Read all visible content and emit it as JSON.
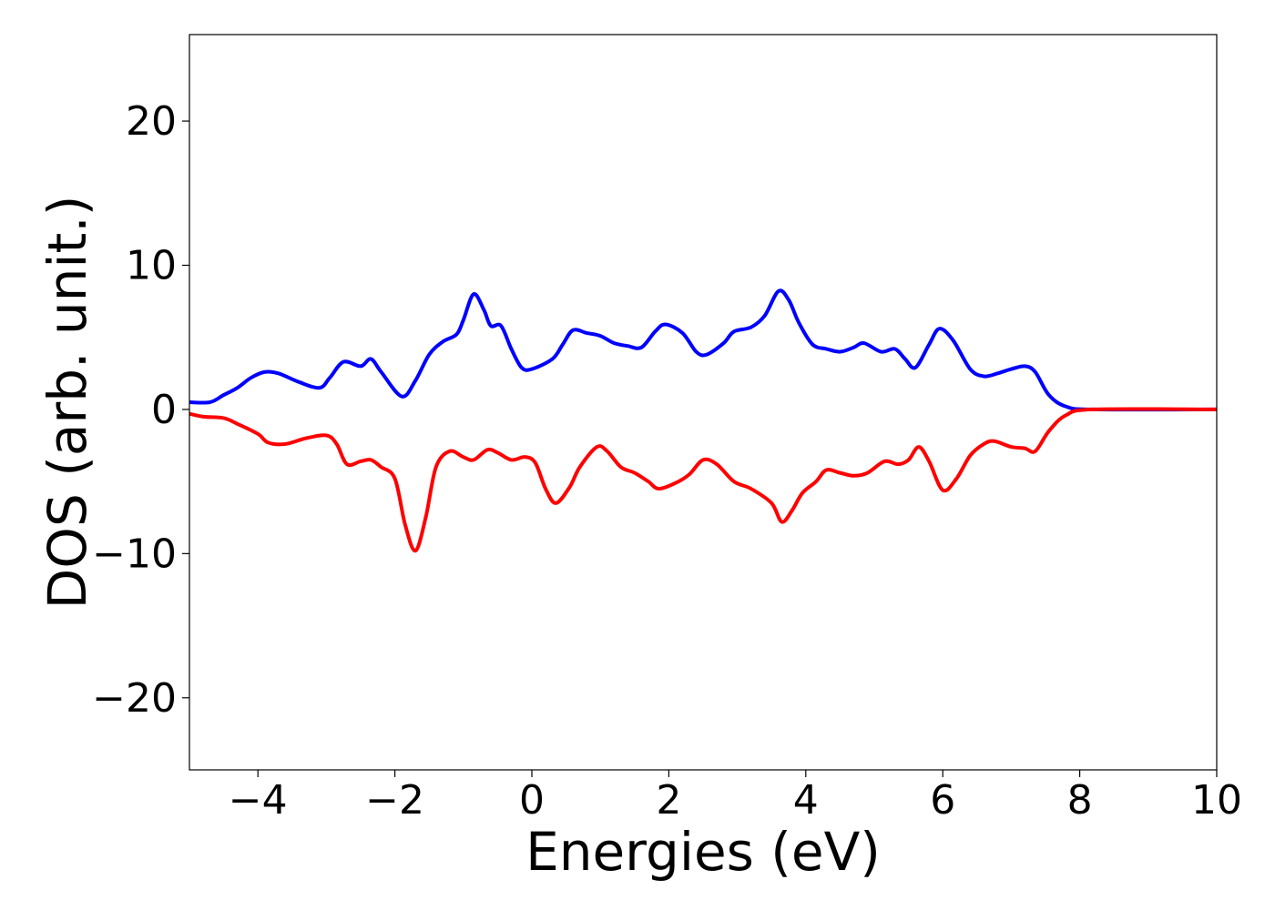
{
  "chart_data": {
    "type": "line",
    "title": "",
    "xlabel": "Energies (eV)",
    "ylabel": "DOS (arb. unit.)",
    "xlim": [
      -5,
      10
    ],
    "ylim": [
      -25,
      26
    ],
    "xticks": [
      -4,
      -2,
      0,
      2,
      4,
      6,
      8,
      10
    ],
    "xtick_labels": [
      "−4",
      "−2",
      "0",
      "2",
      "4",
      "6",
      "8",
      "10"
    ],
    "yticks": [
      20,
      10,
      0,
      -10,
      -20
    ],
    "ytick_labels": [
      "20",
      "10",
      "0",
      "−10",
      "−20"
    ],
    "grid": false,
    "legend": "none",
    "series": [
      {
        "color": "#0000ff",
        "points": [
          [
            -5.0,
            0.5
          ],
          [
            -4.7,
            0.5
          ],
          [
            -4.5,
            1.0
          ],
          [
            -4.3,
            1.5
          ],
          [
            -4.1,
            2.2
          ],
          [
            -3.9,
            2.6
          ],
          [
            -3.7,
            2.5
          ],
          [
            -3.4,
            1.9
          ],
          [
            -3.1,
            1.5
          ],
          [
            -2.95,
            2.2
          ],
          [
            -2.75,
            3.3
          ],
          [
            -2.5,
            3.0
          ],
          [
            -2.35,
            3.5
          ],
          [
            -2.2,
            2.6
          ],
          [
            -1.9,
            0.9
          ],
          [
            -1.7,
            2.0
          ],
          [
            -1.5,
            3.8
          ],
          [
            -1.3,
            4.7
          ],
          [
            -1.1,
            5.2
          ],
          [
            -1.0,
            6.2
          ],
          [
            -0.85,
            8.0
          ],
          [
            -0.7,
            6.9
          ],
          [
            -0.6,
            5.8
          ],
          [
            -0.45,
            5.8
          ],
          [
            -0.3,
            4.2
          ],
          [
            -0.15,
            2.9
          ],
          [
            0.0,
            2.8
          ],
          [
            0.3,
            3.5
          ],
          [
            0.45,
            4.5
          ],
          [
            0.6,
            5.5
          ],
          [
            0.8,
            5.3
          ],
          [
            1.0,
            5.1
          ],
          [
            1.2,
            4.6
          ],
          [
            1.4,
            4.4
          ],
          [
            1.6,
            4.3
          ],
          [
            1.8,
            5.4
          ],
          [
            1.95,
            5.9
          ],
          [
            2.2,
            5.3
          ],
          [
            2.4,
            4.0
          ],
          [
            2.55,
            3.8
          ],
          [
            2.8,
            4.6
          ],
          [
            2.95,
            5.4
          ],
          [
            3.2,
            5.7
          ],
          [
            3.4,
            6.5
          ],
          [
            3.6,
            8.2
          ],
          [
            3.75,
            7.6
          ],
          [
            3.9,
            6.0
          ],
          [
            4.1,
            4.5
          ],
          [
            4.3,
            4.2
          ],
          [
            4.5,
            4.0
          ],
          [
            4.7,
            4.3
          ],
          [
            4.85,
            4.6
          ],
          [
            5.1,
            4.0
          ],
          [
            5.3,
            4.2
          ],
          [
            5.45,
            3.5
          ],
          [
            5.6,
            2.9
          ],
          [
            5.8,
            4.5
          ],
          [
            5.95,
            5.6
          ],
          [
            6.15,
            4.8
          ],
          [
            6.4,
            2.8
          ],
          [
            6.6,
            2.3
          ],
          [
            6.8,
            2.5
          ],
          [
            7.0,
            2.8
          ],
          [
            7.2,
            3.0
          ],
          [
            7.35,
            2.6
          ],
          [
            7.55,
            1.0
          ],
          [
            7.8,
            0.2
          ],
          [
            8.2,
            0.0
          ],
          [
            10.0,
            0.0
          ]
        ]
      },
      {
        "color": "#ff0000",
        "points": [
          [
            -5.0,
            -0.3
          ],
          [
            -4.8,
            -0.5
          ],
          [
            -4.5,
            -0.6
          ],
          [
            -4.3,
            -1.0
          ],
          [
            -4.0,
            -1.7
          ],
          [
            -3.85,
            -2.3
          ],
          [
            -3.6,
            -2.4
          ],
          [
            -3.3,
            -2.0
          ],
          [
            -3.0,
            -1.8
          ],
          [
            -2.85,
            -2.4
          ],
          [
            -2.7,
            -3.8
          ],
          [
            -2.5,
            -3.6
          ],
          [
            -2.35,
            -3.5
          ],
          [
            -2.2,
            -4.0
          ],
          [
            -2.0,
            -4.8
          ],
          [
            -1.85,
            -8.0
          ],
          [
            -1.7,
            -9.8
          ],
          [
            -1.55,
            -7.5
          ],
          [
            -1.4,
            -4.0
          ],
          [
            -1.2,
            -2.9
          ],
          [
            -1.0,
            -3.3
          ],
          [
            -0.85,
            -3.5
          ],
          [
            -0.65,
            -2.8
          ],
          [
            -0.5,
            -3.0
          ],
          [
            -0.3,
            -3.5
          ],
          [
            -0.1,
            -3.3
          ],
          [
            0.05,
            -3.7
          ],
          [
            0.2,
            -5.5
          ],
          [
            0.35,
            -6.5
          ],
          [
            0.55,
            -5.4
          ],
          [
            0.7,
            -4.0
          ],
          [
            0.95,
            -2.6
          ],
          [
            1.1,
            -2.9
          ],
          [
            1.3,
            -4.0
          ],
          [
            1.5,
            -4.4
          ],
          [
            1.7,
            -5.0
          ],
          [
            1.85,
            -5.5
          ],
          [
            2.1,
            -5.1
          ],
          [
            2.3,
            -4.5
          ],
          [
            2.5,
            -3.5
          ],
          [
            2.7,
            -3.8
          ],
          [
            2.95,
            -5.0
          ],
          [
            3.2,
            -5.5
          ],
          [
            3.5,
            -6.5
          ],
          [
            3.65,
            -7.8
          ],
          [
            3.8,
            -7.0
          ],
          [
            3.95,
            -5.8
          ],
          [
            4.15,
            -5.0
          ],
          [
            4.3,
            -4.2
          ],
          [
            4.5,
            -4.4
          ],
          [
            4.7,
            -4.6
          ],
          [
            4.9,
            -4.4
          ],
          [
            5.15,
            -3.6
          ],
          [
            5.35,
            -3.8
          ],
          [
            5.5,
            -3.5
          ],
          [
            5.65,
            -2.6
          ],
          [
            5.8,
            -3.6
          ],
          [
            6.0,
            -5.6
          ],
          [
            6.2,
            -4.8
          ],
          [
            6.4,
            -3.2
          ],
          [
            6.6,
            -2.4
          ],
          [
            6.75,
            -2.2
          ],
          [
            7.0,
            -2.6
          ],
          [
            7.2,
            -2.7
          ],
          [
            7.35,
            -2.9
          ],
          [
            7.55,
            -1.5
          ],
          [
            7.8,
            -0.4
          ],
          [
            8.2,
            0.0
          ],
          [
            10.0,
            0.0
          ]
        ]
      }
    ]
  }
}
